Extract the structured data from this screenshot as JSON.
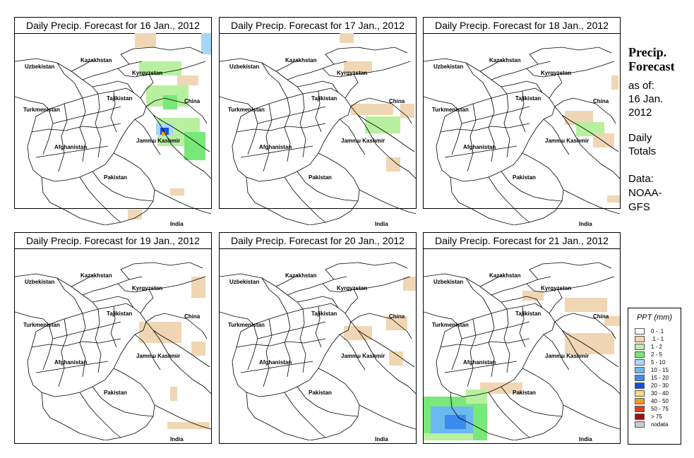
{
  "sidebar": {
    "heading_line1": "Precip.",
    "heading_line2": "Forecast",
    "asof_line1": "as of:",
    "asof_line2": "16 Jan.",
    "asof_line3": "2012",
    "type_line1": "Daily",
    "type_line2": "Totals",
    "data_line1": "Data:",
    "data_line2": "NOAA-",
    "data_line3": "GFS"
  },
  "map_labels": {
    "kazakhstan": "Kazakhstan",
    "uzbekistan": "Uzbekistan",
    "kyrgyzstan": "Kyrgyzstan",
    "tajikistan": "Tajikistan",
    "turkmenistan": "Turkmenistan",
    "china": "China",
    "afghanistan": "Afghanistan",
    "jammu_kashmir": "Jammu Kashmir",
    "pakistan": "Pakistan",
    "india": "India"
  },
  "panels": [
    {
      "title": "Daily Precip. Forecast for  16 Jan., 2012"
    },
    {
      "title": "Daily Precip. Forecast for  17 Jan., 2012"
    },
    {
      "title": "Daily Precip. Forecast for  18 Jan., 2012"
    },
    {
      "title": "Daily Precip. Forecast for  19 Jan., 2012"
    },
    {
      "title": "Daily Precip. Forecast for  20 Jan., 2012"
    },
    {
      "title": "Daily Precip. Forecast for  21 Jan., 2012"
    }
  ],
  "legend": {
    "title": "PPT (mm)",
    "items": [
      {
        "label": "0 - .1",
        "color": "#ffffff"
      },
      {
        "label": ".1 - 1",
        "color": "#f0d6b4"
      },
      {
        "label": "1 - 2",
        "color": "#b8f0a0"
      },
      {
        "label": "2 - 5",
        "color": "#78e878"
      },
      {
        "label": "5 - 10",
        "color": "#a8d8f8"
      },
      {
        "label": "10 - 15",
        "color": "#6cb8f0"
      },
      {
        "label": "15 - 20",
        "color": "#3c8cf0"
      },
      {
        "label": "20 - 30",
        "color": "#1450e0"
      },
      {
        "label": "30 - 40",
        "color": "#f8e070"
      },
      {
        "label": "40 - 50",
        "color": "#f0a020"
      },
      {
        "label": "50 - 75",
        "color": "#e04010"
      },
      {
        "label": "> 75",
        "color": "#a01010"
      },
      {
        "label": "nodata",
        "color": "#cccccc"
      }
    ]
  }
}
